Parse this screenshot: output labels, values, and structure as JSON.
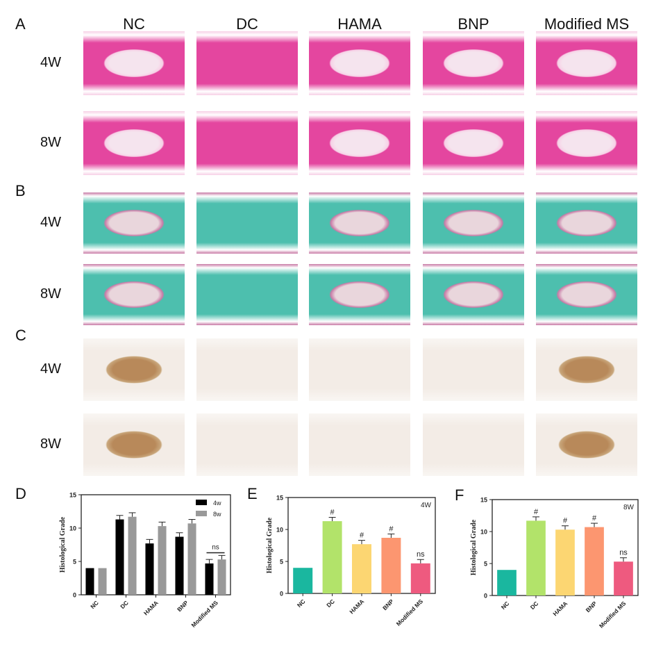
{
  "panel_labels": [
    "A",
    "B",
    "C",
    "D",
    "E",
    "F"
  ],
  "columns": [
    "NC",
    "DC",
    "HAMA",
    "BNP",
    "Modified MS"
  ],
  "rows": [
    "4W",
    "8W"
  ],
  "stain_colors": {
    "A": "#e4469f",
    "B": "#4dbfae",
    "C": "#f3ece6"
  },
  "chart_data": [
    {
      "panel": "D",
      "type": "bar",
      "ylabel": "Histological Grade",
      "categories": [
        "NC",
        "DC",
        "HAMA",
        "BNP",
        "Modified MS"
      ],
      "ylim": [
        0,
        15
      ],
      "yticks": [
        "0",
        "5",
        "10",
        "15"
      ],
      "legend_position": "top-right",
      "series": [
        {
          "name": "4w",
          "color": "#000000",
          "values": [
            4,
            11.3,
            7.7,
            8.7,
            4.7
          ],
          "errors": [
            0,
            0.6,
            0.6,
            0.6,
            0.6
          ]
        },
        {
          "name": "8w",
          "color": "#999999",
          "values": [
            4,
            11.7,
            10.3,
            10.7,
            5.3
          ],
          "errors": [
            0,
            0.6,
            0.6,
            0.6,
            0.6
          ]
        }
      ],
      "annotations": [
        {
          "category": "Modified MS",
          "text": "ns"
        }
      ]
    },
    {
      "panel": "E",
      "type": "bar",
      "ylabel": "Histological Grade",
      "label": "4W",
      "categories": [
        "NC",
        "DC",
        "HAMA",
        "BNP",
        "Modified MS"
      ],
      "ylim": [
        0,
        15
      ],
      "yticks": [
        "0",
        "5",
        "10",
        "15"
      ],
      "colors": [
        "#1ab79f",
        "#b2e36a",
        "#fcd672",
        "#fc9670",
        "#ee5a7f"
      ],
      "values": [
        4,
        11.3,
        7.7,
        8.7,
        4.7
      ],
      "errors": [
        0,
        0.6,
        0.6,
        0.6,
        0.6
      ],
      "marks": [
        "",
        "#",
        "#",
        "#",
        "ns"
      ]
    },
    {
      "panel": "F",
      "type": "bar",
      "ylabel": "Histological Grade",
      "label": "8W",
      "categories": [
        "NC",
        "DC",
        "HAMA",
        "BNP",
        "Modified MS"
      ],
      "ylim": [
        0,
        15
      ],
      "yticks": [
        "0",
        "5",
        "10",
        "15"
      ],
      "colors": [
        "#1ab79f",
        "#b2e36a",
        "#fcd672",
        "#fc9670",
        "#ee5a7f"
      ],
      "values": [
        4,
        11.7,
        10.3,
        10.7,
        5.3
      ],
      "errors": [
        0,
        0.6,
        0.6,
        0.6,
        0.6
      ],
      "marks": [
        "",
        "#",
        "#",
        "#",
        "ns"
      ]
    }
  ]
}
